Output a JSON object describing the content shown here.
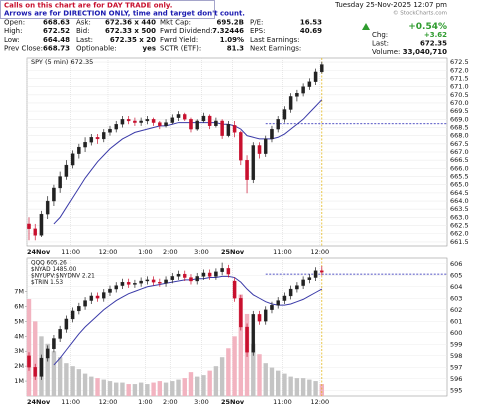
{
  "notice": [
    "Calls on this chart are for DAY TRADE only.",
    "Arrows are for DIRECTION ONLY, time and target don't count."
  ],
  "header": {
    "date": "Tuesday 25-Nov-2025 12:07 pm",
    "credit": "© StockCharts.com",
    "quote": [
      [
        [
          "Open:",
          "668.63"
        ],
        [
          "Ask:",
          "672.36 x 440"
        ],
        [
          "Mkt Cap:",
          "695.2B"
        ],
        [
          "P/E:",
          "16.53"
        ]
      ],
      [
        [
          "High:",
          "672.52"
        ],
        [
          "Bid:",
          "672.33 x 500"
        ],
        [
          "Fwrd Dividend:",
          "7.32446"
        ],
        [
          "EPS:",
          "40.69"
        ]
      ],
      [
        [
          "Low:",
          "664.48"
        ],
        [
          "Last:",
          "672.35 x 20"
        ],
        [
          "Fwrd Yield:",
          "1.09%"
        ],
        [
          "Last Earnings:"
        ]
      ],
      [
        [
          "Prev Close:",
          "668.73"
        ],
        [
          "Optionable:",
          "yes"
        ],
        [
          "SCTR (ETF):",
          "81.3"
        ],
        [
          "Next Earnings:"
        ]
      ]
    ],
    "change_pct": "+0.54%",
    "change_label": "Chg:",
    "change": "+3.62",
    "last_label": "Last:",
    "last": "672.35",
    "volume_label": "Volume:",
    "volume": "33,040,710"
  },
  "chart_data": [
    {
      "type": "candlestick",
      "title": "SPY (5 min) 672.35",
      "categories": [
        "24Nov",
        null,
        null,
        null,
        null,
        null,
        null,
        "11:00",
        null,
        null,
        null,
        null,
        null,
        "12:00",
        null,
        null,
        null,
        null,
        null,
        "1:00",
        null,
        null,
        null,
        "2:00",
        null,
        null,
        null,
        null,
        "3:00",
        null,
        null,
        null,
        null,
        "25Nov",
        null,
        null,
        null,
        null,
        null,
        null,
        null,
        "11:00",
        null,
        null,
        null,
        null,
        null,
        "12:00"
      ],
      "ohlc": [
        [
          662.6,
          663.0,
          661.6,
          662.3
        ],
        [
          662.3,
          662.6,
          661.6,
          661.9
        ],
        [
          661.9,
          663.4,
          661.8,
          663.2
        ],
        [
          663.2,
          664.3,
          662.9,
          664.0
        ],
        [
          664.0,
          665.0,
          663.7,
          664.8
        ],
        [
          664.8,
          665.8,
          664.5,
          665.5
        ],
        [
          665.5,
          666.5,
          665.3,
          666.2
        ],
        [
          666.2,
          667.1,
          666.0,
          666.9
        ],
        [
          666.9,
          667.5,
          666.6,
          667.3
        ],
        [
          667.3,
          667.9,
          667.0,
          667.6
        ],
        [
          667.6,
          668.1,
          667.4,
          667.9
        ],
        [
          667.9,
          668.1,
          667.5,
          667.8
        ],
        [
          667.8,
          668.4,
          667.6,
          668.2
        ],
        [
          668.2,
          668.6,
          668.0,
          668.4
        ],
        [
          668.4,
          668.9,
          668.2,
          668.7
        ],
        [
          668.7,
          669.2,
          668.5,
          669.0
        ],
        [
          669.0,
          669.2,
          668.7,
          668.9
        ],
        [
          668.9,
          669.1,
          668.6,
          668.8
        ],
        [
          668.8,
          669.1,
          668.6,
          668.9
        ],
        [
          668.9,
          669.2,
          668.7,
          669.0
        ],
        [
          669.0,
          669.1,
          668.6,
          668.8
        ],
        [
          668.8,
          668.9,
          668.4,
          668.6
        ],
        [
          668.6,
          669.0,
          668.5,
          668.8
        ],
        [
          668.8,
          669.3,
          668.7,
          669.1
        ],
        [
          669.1,
          669.5,
          668.9,
          669.3
        ],
        [
          669.3,
          669.4,
          668.9,
          669.0
        ],
        [
          669.0,
          669.1,
          668.2,
          668.4
        ],
        [
          668.4,
          669.0,
          668.3,
          668.9
        ],
        [
          668.9,
          669.4,
          668.8,
          669.2
        ],
        [
          669.2,
          669.3,
          668.4,
          668.6
        ],
        [
          668.6,
          669.1,
          668.5,
          668.9
        ],
        [
          668.9,
          669.0,
          667.8,
          668.0
        ],
        [
          668.0,
          668.9,
          667.9,
          668.7
        ],
        [
          668.63,
          668.9,
          667.9,
          668.2
        ],
        [
          668.2,
          668.3,
          666.2,
          666.5
        ],
        [
          666.5,
          666.8,
          664.48,
          665.3
        ],
        [
          665.3,
          667.6,
          665.1,
          667.4
        ],
        [
          667.4,
          667.6,
          666.6,
          666.9
        ],
        [
          666.9,
          668.0,
          666.7,
          667.8
        ],
        [
          667.8,
          668.6,
          667.6,
          668.4
        ],
        [
          668.4,
          669.2,
          668.2,
          669.0
        ],
        [
          669.0,
          669.8,
          668.8,
          669.6
        ],
        [
          669.6,
          670.6,
          669.4,
          670.4
        ],
        [
          670.4,
          670.8,
          670.1,
          670.6
        ],
        [
          670.6,
          671.2,
          670.4,
          671.0
        ],
        [
          671.0,
          671.5,
          670.8,
          671.3
        ],
        [
          671.3,
          672.1,
          671.1,
          671.9
        ],
        [
          671.9,
          672.52,
          671.8,
          672.35
        ]
      ],
      "ma": {
        "color": "#3a3aa8",
        "values": [
          null,
          null,
          null,
          null,
          662.6,
          663.0,
          663.6,
          664.2,
          664.8,
          665.4,
          665.9,
          666.4,
          666.8,
          667.2,
          667.5,
          667.8,
          668.0,
          668.2,
          668.3,
          668.4,
          668.5,
          668.6,
          668.6,
          668.7,
          668.8,
          668.8,
          668.8,
          668.8,
          668.8,
          668.8,
          668.8,
          668.7,
          668.7,
          668.6,
          668.4,
          668.0,
          667.9,
          667.8,
          667.8,
          667.8,
          667.9,
          668.1,
          668.4,
          668.7,
          669.0,
          669.4,
          669.8,
          670.2
        ]
      },
      "ref_line": 668.73,
      "up_color": "#222222",
      "down_color": "#c8102e",
      "ylim": [
        661.25,
        672.75
      ],
      "yticks": [
        661.5,
        {
          "value": 662,
          "label": "662.0"
        },
        662.5,
        {
          "value": 663,
          "label": "663.0"
        },
        663.5,
        {
          "value": 664,
          "label": "664.0"
        },
        664.5,
        {
          "value": 665,
          "label": "665.0"
        },
        665.5,
        {
          "value": 666,
          "label": "666.0"
        },
        666.5,
        {
          "value": 667,
          "label": "667.0"
        },
        667.5,
        {
          "value": 668,
          "label": "668.0"
        },
        668.5,
        {
          "value": 669,
          "label": "669.0"
        },
        669.5,
        {
          "value": 670,
          "label": "670.0"
        },
        670.5,
        {
          "value": 671,
          "label": "671.0"
        },
        671.5,
        {
          "value": 672,
          "label": "672.0"
        },
        672.5
      ],
      "grid": true
    },
    {
      "type": "candlestick",
      "legend": [
        "QQQ 605.26",
        "$NYAD 1485.00",
        "$NYUPV:$NYDNV 2.21",
        "$TRIN 1.53"
      ],
      "categories": [
        "24Nov",
        null,
        null,
        null,
        null,
        null,
        null,
        "11:00",
        null,
        null,
        null,
        null,
        null,
        "12:00",
        null,
        null,
        null,
        null,
        null,
        "1:00",
        null,
        null,
        null,
        "2:00",
        null,
        null,
        null,
        null,
        "3:00",
        null,
        null,
        null,
        null,
        "25Nov",
        null,
        null,
        null,
        null,
        null,
        null,
        null,
        "11:00",
        null,
        null,
        null,
        null,
        null,
        "12:00"
      ],
      "ohlc": [
        [
          598.0,
          598.3,
          596.7,
          597.0
        ],
        [
          597.0,
          597.3,
          595.9,
          596.2
        ],
        [
          596.2,
          598.1,
          595.9,
          597.8
        ],
        [
          597.8,
          598.9,
          597.5,
          598.6
        ],
        [
          598.6,
          599.8,
          598.3,
          599.5
        ],
        [
          599.5,
          600.6,
          599.2,
          600.3
        ],
        [
          600.3,
          601.5,
          600.0,
          601.2
        ],
        [
          601.2,
          602.2,
          600.9,
          601.9
        ],
        [
          601.9,
          602.6,
          601.6,
          602.3
        ],
        [
          602.3,
          603.1,
          602.0,
          602.8
        ],
        [
          602.8,
          603.5,
          602.5,
          603.2
        ],
        [
          603.2,
          603.5,
          602.7,
          603.0
        ],
        [
          603.0,
          603.8,
          602.7,
          603.5
        ],
        [
          603.5,
          604.1,
          603.2,
          603.8
        ],
        [
          603.8,
          604.4,
          603.5,
          604.1
        ],
        [
          604.1,
          604.7,
          603.8,
          604.4
        ],
        [
          604.4,
          604.7,
          603.9,
          604.2
        ],
        [
          604.2,
          604.6,
          603.9,
          604.3
        ],
        [
          604.3,
          604.8,
          604.0,
          604.5
        ],
        [
          604.5,
          604.9,
          604.2,
          604.6
        ],
        [
          604.6,
          604.9,
          604.1,
          604.4
        ],
        [
          604.4,
          604.7,
          604.0,
          604.3
        ],
        [
          604.3,
          604.9,
          604.0,
          604.6
        ],
        [
          604.6,
          605.2,
          604.3,
          604.9
        ],
        [
          604.9,
          605.4,
          604.6,
          605.1
        ],
        [
          605.1,
          605.4,
          604.5,
          604.8
        ],
        [
          604.8,
          605.1,
          604.2,
          604.5
        ],
        [
          604.5,
          605.2,
          604.2,
          604.9
        ],
        [
          604.9,
          605.5,
          604.6,
          605.2
        ],
        [
          605.2,
          605.5,
          604.6,
          604.9
        ],
        [
          604.9,
          605.6,
          604.6,
          605.3
        ],
        [
          605.3,
          606.1,
          605.0,
          605.6
        ],
        [
          605.6,
          605.9,
          604.8,
          605.1
        ],
        [
          604.5,
          604.8,
          602.7,
          603.0
        ],
        [
          603.0,
          603.3,
          600.2,
          600.5
        ],
        [
          600.5,
          600.8,
          597.9,
          598.3
        ],
        [
          598.3,
          601.9,
          598.0,
          601.6
        ],
        [
          601.6,
          601.9,
          600.7,
          601.0
        ],
        [
          601.0,
          602.3,
          600.7,
          602.0
        ],
        [
          602.0,
          602.7,
          601.7,
          602.4
        ],
        [
          602.4,
          603.1,
          602.1,
          602.8
        ],
        [
          602.8,
          603.5,
          602.5,
          603.2
        ],
        [
          603.2,
          604.1,
          602.9,
          603.8
        ],
        [
          603.8,
          604.4,
          603.5,
          604.1
        ],
        [
          604.1,
          604.9,
          603.8,
          604.6
        ],
        [
          604.6,
          605.1,
          604.3,
          604.8
        ],
        [
          604.8,
          605.7,
          604.5,
          605.4
        ],
        [
          605.4,
          605.8,
          605.0,
          605.26
        ]
      ],
      "ma": {
        "color": "#3a3aa8",
        "values": [
          null,
          null,
          null,
          null,
          597.2,
          597.8,
          598.5,
          599.2,
          599.9,
          600.5,
          601.0,
          601.5,
          602.0,
          602.4,
          602.8,
          603.1,
          603.4,
          603.6,
          603.8,
          604.0,
          604.1,
          604.2,
          604.3,
          604.4,
          604.5,
          604.6,
          604.6,
          604.7,
          604.7,
          604.8,
          604.8,
          604.9,
          604.9,
          604.8,
          604.4,
          603.8,
          603.3,
          603.0,
          602.7,
          602.5,
          602.4,
          602.4,
          602.5,
          602.7,
          602.9,
          603.2,
          603.5,
          603.8
        ]
      },
      "ref_line": 605.1,
      "up_color": "#222222",
      "down_color": "#c8102e",
      "ylim": [
        594.5,
        606.5
      ],
      "yticks": [
        595,
        596,
        597,
        598,
        599,
        600,
        601,
        602,
        603,
        604,
        605,
        606
      ],
      "volume": {
        "up_color": "#c4c4c4",
        "down_color": "#f2b3c0",
        "values": [
          6.5,
          5.0,
          4.0,
          3.5,
          3.0,
          2.6,
          2.2,
          2.0,
          1.8,
          1.5,
          1.3,
          1.2,
          1.1,
          1.0,
          0.9,
          0.9,
          0.8,
          0.8,
          0.9,
          0.8,
          0.9,
          1.0,
          0.9,
          1.0,
          1.1,
          1.2,
          1.6,
          1.3,
          1.4,
          1.7,
          2.0,
          2.6,
          3.2,
          4.0,
          6.8,
          5.5,
          3.5,
          2.8,
          2.2,
          1.9,
          1.7,
          1.5,
          1.3,
          1.2,
          1.2,
          1.1,
          1.0,
          0.8
        ],
        "ylim": [
          0,
          9.25
        ],
        "yticks": [
          {
            "value": 1,
            "label": "1M"
          },
          {
            "value": 2,
            "label": "2M"
          },
          {
            "value": 3,
            "label": "3M"
          },
          {
            "value": 4,
            "label": "4M"
          },
          {
            "value": 5,
            "label": "5M"
          },
          {
            "value": 6,
            "label": "6M"
          },
          {
            "value": 7,
            "label": "7M"
          }
        ]
      },
      "grid": true
    }
  ]
}
